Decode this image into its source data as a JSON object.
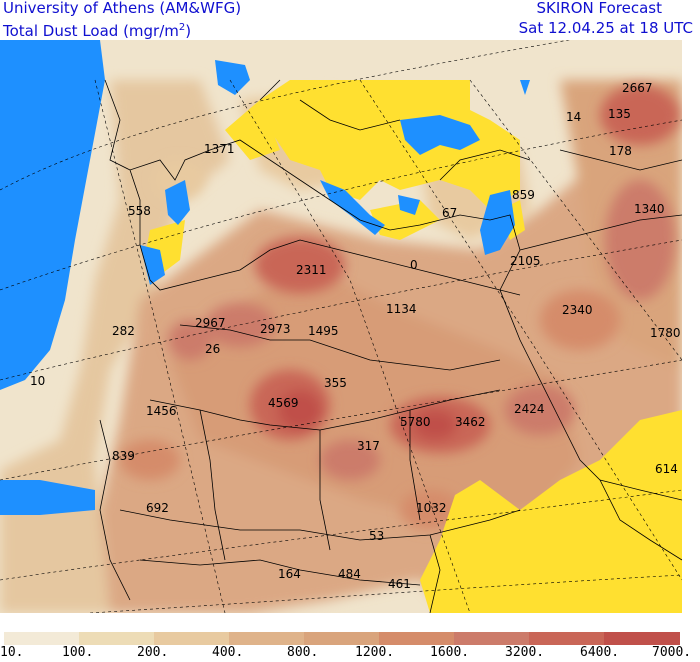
{
  "header": {
    "institution": "University of Athens (AM&WFG)",
    "field_name": "Total Dust Load (mgr/m",
    "field_exponent": "2",
    "field_close": ")",
    "product": "SKIRON Forecast",
    "valid_time": "Sat 12.04.25 at 18 UTC"
  },
  "map": {
    "region": "North Africa / Mediterranean / Europe",
    "colors": {
      "sea": "#1e90ff",
      "no_dust": "#ffe030",
      "land_outline": "#000000"
    },
    "value_labels": [
      {
        "text": "2667"
      },
      {
        "text": "135"
      },
      {
        "text": "14"
      },
      {
        "text": "178"
      },
      {
        "text": "1340"
      },
      {
        "text": "1371"
      },
      {
        "text": "558"
      },
      {
        "text": "859"
      },
      {
        "text": "67"
      },
      {
        "text": "0"
      },
      {
        "text": "2311"
      },
      {
        "text": "2105"
      },
      {
        "text": "2967"
      },
      {
        "text": "2973"
      },
      {
        "text": "1495"
      },
      {
        "text": "1134"
      },
      {
        "text": "2340"
      },
      {
        "text": "1780"
      },
      {
        "text": "282"
      },
      {
        "text": "26"
      },
      {
        "text": "10"
      },
      {
        "text": "355"
      },
      {
        "text": "4569"
      },
      {
        "text": "1456"
      },
      {
        "text": "5780"
      },
      {
        "text": "3462"
      },
      {
        "text": "2424"
      },
      {
        "text": "317"
      },
      {
        "text": "839"
      },
      {
        "text": "614"
      },
      {
        "text": "692"
      },
      {
        "text": "1032"
      },
      {
        "text": "53"
      },
      {
        "text": "164"
      },
      {
        "text": "484"
      },
      {
        "text": "461"
      }
    ]
  },
  "legend": {
    "bins": [
      {
        "label": "10.",
        "color": "#f3ead7"
      },
      {
        "label": "100.",
        "color": "#eddcb6"
      },
      {
        "label": "200.",
        "color": "#e8caa0"
      },
      {
        "label": "400.",
        "color": "#dfb38a"
      },
      {
        "label": "800.",
        "color": "#d9a47c"
      },
      {
        "label": "1200.",
        "color": "#d58c6a"
      },
      {
        "label": "1600.",
        "color": "#cc7b6a"
      },
      {
        "label": "3200.",
        "color": "#c96657"
      },
      {
        "label": "6400.",
        "color": "#c0504a"
      }
    ],
    "last_label": "7000."
  }
}
